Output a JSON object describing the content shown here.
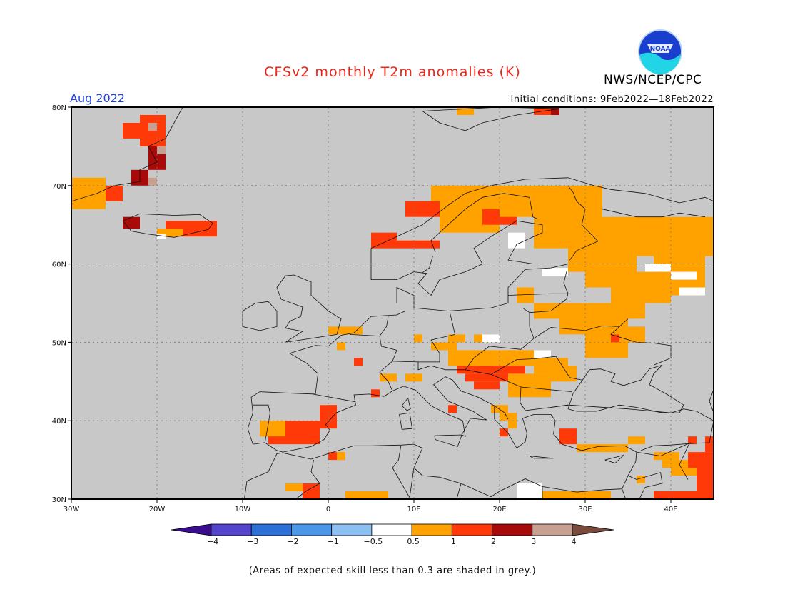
{
  "title": "CFSv2 monthly T2m anomalies (K)",
  "valid_month": "Aug 2022",
  "initial_conditions": "Initial conditions: 9Feb2022—18Feb2022",
  "agency": "NWS/NCEP/CPC",
  "logo_text": "NOAA",
  "footnote": "(Areas of expected skill less than 0.3 are shaded in grey.)",
  "map": {
    "lon_range": [
      -30,
      45
    ],
    "lat_range": [
      30,
      80
    ],
    "lon_ticks": [
      "30W",
      "20W",
      "10W",
      "0",
      "10E",
      "20E",
      "30E",
      "40E"
    ],
    "lat_ticks": [
      "30N",
      "40N",
      "50N",
      "60N",
      "70N",
      "80N"
    ],
    "background_color": "#c8c8c8",
    "grid": true
  },
  "colorbar": {
    "labels": [
      "−4",
      "−3",
      "−2",
      "−1",
      "−0.5",
      "0.5",
      "1",
      "2",
      "3",
      "4"
    ],
    "colors": [
      "#3a0c8e",
      "#5544cc",
      "#2c6fd6",
      "#4a97ea",
      "#8cbff2",
      "#ffffff",
      "#ffa200",
      "#ff3a08",
      "#a80a0a",
      "#c8a092",
      "#7a4a3c"
    ]
  }
}
